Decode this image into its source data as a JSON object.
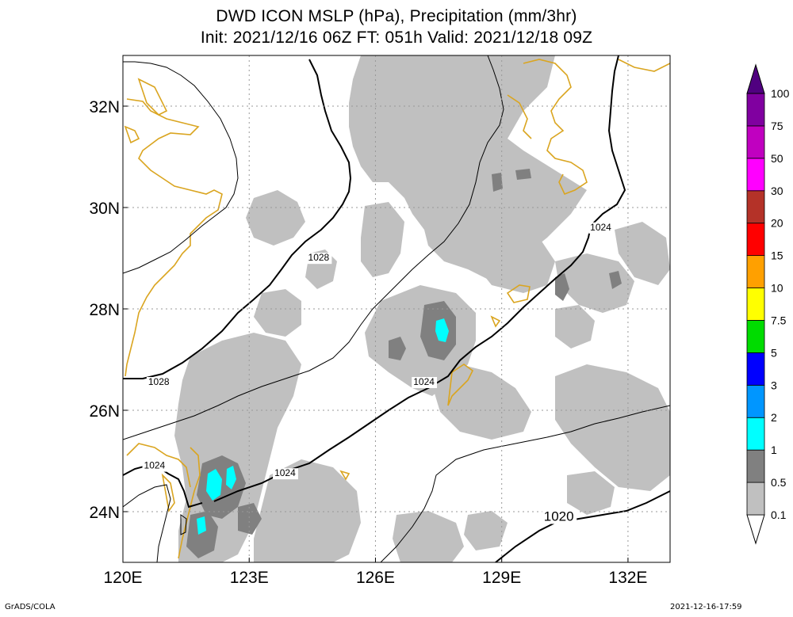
{
  "title_line1": "DWD ICON MSLP (hPa), Precipitation (mm/3hr)",
  "title_line2": "Init: 2021/12/16 06Z  FT: 051h  Valid: 2021/12/18 09Z",
  "footer_left": "GrADS/COLA",
  "footer_right": "2021-12-16-17:59",
  "map": {
    "lon_range": [
      120,
      133
    ],
    "lat_range": [
      23,
      33
    ],
    "lon_ticks": [
      {
        "value": 120,
        "label": "120E"
      },
      {
        "value": 123,
        "label": "123E"
      },
      {
        "value": 126,
        "label": "126E"
      },
      {
        "value": 129,
        "label": "129E"
      },
      {
        "value": 132,
        "label": "132E"
      }
    ],
    "lat_ticks": [
      {
        "value": 24,
        "label": "24N"
      },
      {
        "value": 26,
        "label": "26N"
      },
      {
        "value": 28,
        "label": "28N"
      },
      {
        "value": 30,
        "label": "30N"
      },
      {
        "value": 32,
        "label": "32N"
      }
    ],
    "isobar_labels": [
      {
        "text": "1028",
        "lon": 124.4,
        "lat": 28.95
      },
      {
        "text": "1028",
        "lon": 120.6,
        "lat": 26.5
      },
      {
        "text": "1024",
        "lon": 131.1,
        "lat": 29.55
      },
      {
        "text": "1024",
        "lon": 126.9,
        "lat": 26.5
      },
      {
        "text": "1024",
        "lon": 120.5,
        "lat": 24.85
      },
      {
        "text": "1024",
        "lon": 123.6,
        "lat": 24.7
      },
      {
        "text": "1020",
        "lon": 130.0,
        "lat": 23.82
      }
    ]
  },
  "legend": {
    "labels": [
      "0.1",
      "0.5",
      "1",
      "2",
      "3",
      "5",
      "7.5",
      "10",
      "15",
      "20",
      "30",
      "50",
      "75",
      "100"
    ],
    "colors": [
      "#ffffff",
      "#c0c0c0",
      "#808080",
      "#00ffff",
      "#0096ff",
      "#0000ff",
      "#00dc00",
      "#ffff00",
      "#ffa000",
      "#ff0000",
      "#b43228",
      "#ff00ff",
      "#c000c0",
      "#8000a0",
      "#500080"
    ]
  }
}
